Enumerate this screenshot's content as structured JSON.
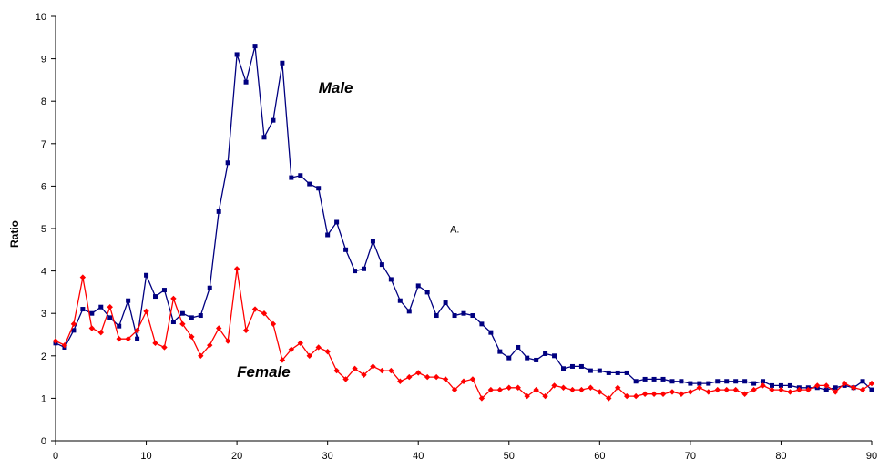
{
  "chart_data": {
    "type": "line",
    "xlim": [
      0,
      90
    ],
    "ylim": [
      0,
      10
    ],
    "xticks": [
      0,
      10,
      20,
      30,
      40,
      50,
      60,
      70,
      80,
      90
    ],
    "yticks": [
      0,
      1,
      2,
      3,
      4,
      5,
      6,
      7,
      8,
      9,
      10
    ],
    "ylabel": "Ratio",
    "xlabel": "",
    "grid": false,
    "legend": "none",
    "annotations": [
      {
        "text": "Male",
        "x": 29,
        "y": 8.2
      },
      {
        "text": "Female",
        "x": 20,
        "y": 1.5
      },
      {
        "text": "A.",
        "x": 43.5,
        "y": 4.9
      }
    ],
    "series": [
      {
        "name": "Male",
        "color": "#000080",
        "marker": "square",
        "x": [
          0,
          1,
          2,
          3,
          4,
          5,
          6,
          7,
          8,
          9,
          10,
          11,
          12,
          13,
          14,
          15,
          16,
          17,
          18,
          19,
          20,
          21,
          22,
          23,
          24,
          25,
          26,
          27,
          28,
          29,
          30,
          31,
          32,
          33,
          34,
          35,
          36,
          37,
          38,
          39,
          40,
          41,
          42,
          43,
          44,
          45,
          46,
          47,
          48,
          49,
          50,
          51,
          52,
          53,
          54,
          55,
          56,
          57,
          58,
          59,
          60,
          61,
          62,
          63,
          64,
          65,
          66,
          67,
          68,
          69,
          70,
          71,
          72,
          73,
          74,
          75,
          76,
          77,
          78,
          79,
          80,
          81,
          82,
          83,
          84,
          85,
          86,
          87,
          88,
          89,
          90
        ],
        "values": [
          2.3,
          2.2,
          2.6,
          3.1,
          3.0,
          3.15,
          2.9,
          2.7,
          3.3,
          2.4,
          3.9,
          3.4,
          3.55,
          2.8,
          3.0,
          2.9,
          2.95,
          3.6,
          5.4,
          6.55,
          9.1,
          8.45,
          9.3,
          7.15,
          7.55,
          8.9,
          6.2,
          6.25,
          6.05,
          5.95,
          4.85,
          5.15,
          4.5,
          4.0,
          4.05,
          4.7,
          4.15,
          3.8,
          3.3,
          3.05,
          3.65,
          3.5,
          2.95,
          3.25,
          2.95,
          3.0,
          2.95,
          2.75,
          2.55,
          2.1,
          1.95,
          2.2,
          1.95,
          1.9,
          2.05,
          2.0,
          1.7,
          1.75,
          1.75,
          1.65,
          1.65,
          1.6,
          1.6,
          1.6,
          1.4,
          1.45,
          1.45,
          1.45,
          1.4,
          1.4,
          1.35,
          1.35,
          1.35,
          1.4,
          1.4,
          1.4,
          1.4,
          1.35,
          1.4,
          1.3,
          1.3,
          1.3,
          1.25,
          1.25,
          1.25,
          1.2,
          1.25,
          1.3,
          1.25,
          1.4,
          1.2
        ]
      },
      {
        "name": "Female",
        "color": "#ff0000",
        "marker": "diamond",
        "x": [
          0,
          1,
          2,
          3,
          4,
          5,
          6,
          7,
          8,
          9,
          10,
          11,
          12,
          13,
          14,
          15,
          16,
          17,
          18,
          19,
          20,
          21,
          22,
          23,
          24,
          25,
          26,
          27,
          28,
          29,
          30,
          31,
          32,
          33,
          34,
          35,
          36,
          37,
          38,
          39,
          40,
          41,
          42,
          43,
          44,
          45,
          46,
          47,
          48,
          49,
          50,
          51,
          52,
          53,
          54,
          55,
          56,
          57,
          58,
          59,
          60,
          61,
          62,
          63,
          64,
          65,
          66,
          67,
          68,
          69,
          70,
          71,
          72,
          73,
          74,
          75,
          76,
          77,
          78,
          79,
          80,
          81,
          82,
          83,
          84,
          85,
          86,
          87,
          88,
          89,
          90
        ],
        "values": [
          2.35,
          2.25,
          2.75,
          3.85,
          2.65,
          2.55,
          3.15,
          2.4,
          2.4,
          2.6,
          3.05,
          2.3,
          2.2,
          3.35,
          2.75,
          2.45,
          2.0,
          2.25,
          2.65,
          2.35,
          4.05,
          2.6,
          3.1,
          3.0,
          2.75,
          1.9,
          2.15,
          2.3,
          2.0,
          2.2,
          2.1,
          1.65,
          1.45,
          1.7,
          1.55,
          1.75,
          1.65,
          1.65,
          1.4,
          1.5,
          1.6,
          1.5,
          1.5,
          1.45,
          1.2,
          1.4,
          1.45,
          1.0,
          1.2,
          1.2,
          1.25,
          1.25,
          1.05,
          1.2,
          1.05,
          1.3,
          1.25,
          1.2,
          1.2,
          1.25,
          1.15,
          1.0,
          1.25,
          1.05,
          1.05,
          1.1,
          1.1,
          1.1,
          1.15,
          1.1,
          1.15,
          1.25,
          1.15,
          1.2,
          1.2,
          1.2,
          1.1,
          1.2,
          1.3,
          1.2,
          1.2,
          1.15,
          1.2,
          1.2,
          1.3,
          1.3,
          1.15,
          1.35,
          1.25,
          1.2,
          1.35
        ]
      }
    ]
  }
}
